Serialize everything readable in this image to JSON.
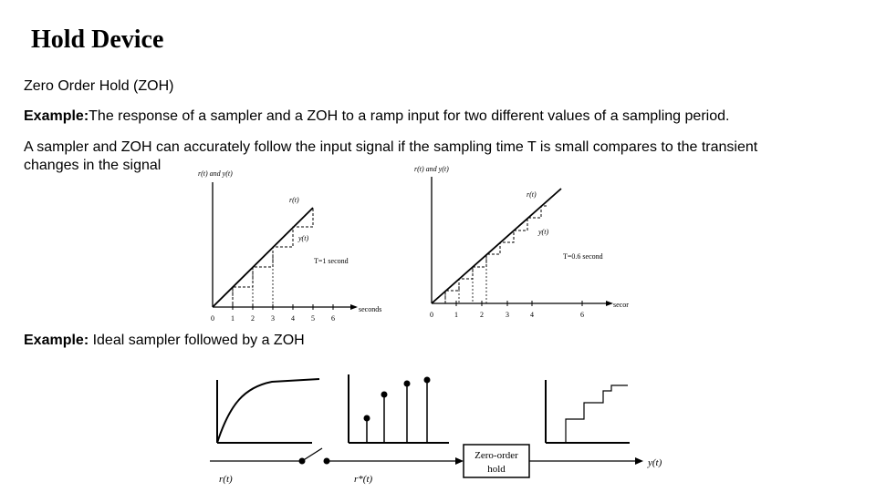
{
  "slide": {
    "title": "Hold Device",
    "subtitle": "Zero Order Hold (ZOH)",
    "example1_label": "Example:",
    "example1_text": "The response of a sampler and a ZOH to a ramp input for two different values of a sampling period.",
    "paragraph_line1": "A sampler and ZOH can accurately follow the input signal if the sampling time T is small compares to the transient",
    "paragraph_line2": "changes in the signal",
    "example2_label": "Example:",
    "example2_text": " Ideal sampler followed by a ZOH"
  },
  "graph_left": {
    "ylabel": "r(t) and y(t)",
    "rt_label": "r(t)",
    "yt_label": "y(t)",
    "period_label": "T=1 second",
    "xlabel": "seconds",
    "ticks": [
      "0",
      "1",
      "2",
      "3",
      "4",
      "5",
      "6"
    ]
  },
  "graph_right": {
    "ylabel": "r(t) and y(t)",
    "rt_label": "r(t)",
    "yt_label": "y(t)",
    "period_label": "T=0.6 second",
    "xlabel": "secor",
    "ticks": [
      "0",
      "1",
      "2",
      "3",
      "4",
      "6"
    ]
  },
  "block_diagram": {
    "input_label": "r(t)",
    "sampled_label": "r*(t)",
    "block_line1": "Zero-order",
    "block_line2": "hold",
    "output_label": "y(t)"
  }
}
